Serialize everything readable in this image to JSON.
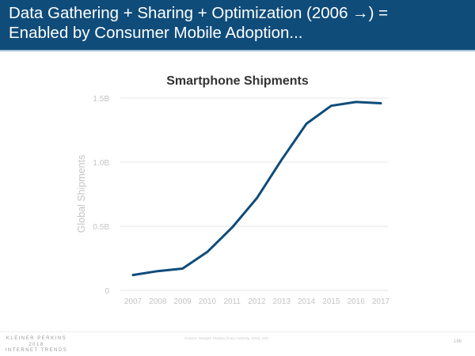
{
  "header": {
    "title_line1": "Data Gathering + Sharing + Optimization (2006 →) =",
    "title_line2": "Enabled by Consumer Mobile Adoption..."
  },
  "chart_data": {
    "type": "line",
    "title": "Smartphone Shipments",
    "xlabel": "",
    "ylabel": "Global Shipments",
    "categories": [
      "2007",
      "2008",
      "2009",
      "2010",
      "2011",
      "2012",
      "2013",
      "2014",
      "2015",
      "2016",
      "2017"
    ],
    "series": [
      {
        "name": "Smartphone Shipments",
        "unit": "B",
        "values": [
          0.12,
          0.15,
          0.17,
          0.3,
          0.49,
          0.72,
          1.02,
          1.3,
          1.44,
          1.47,
          1.46
        ],
        "color": "#0f4c7a"
      }
    ],
    "ylim": [
      0,
      1.5
    ],
    "yticks": [
      {
        "value": 0,
        "label": "0"
      },
      {
        "value": 0.5,
        "label": "0.5B"
      },
      {
        "value": 1.0,
        "label": "1.0B"
      },
      {
        "value": 1.5,
        "label": "1.5B"
      }
    ],
    "grid": true,
    "legend": "none"
  },
  "footer": {
    "logo_line1": "KLEINER PERKINS",
    "logo_line2": "2018",
    "logo_line3": "INTERNET TRENDS",
    "source": "Source: Morgan Stanley (Katy Huberty, 3/18), IDC.",
    "page_number": "186"
  }
}
